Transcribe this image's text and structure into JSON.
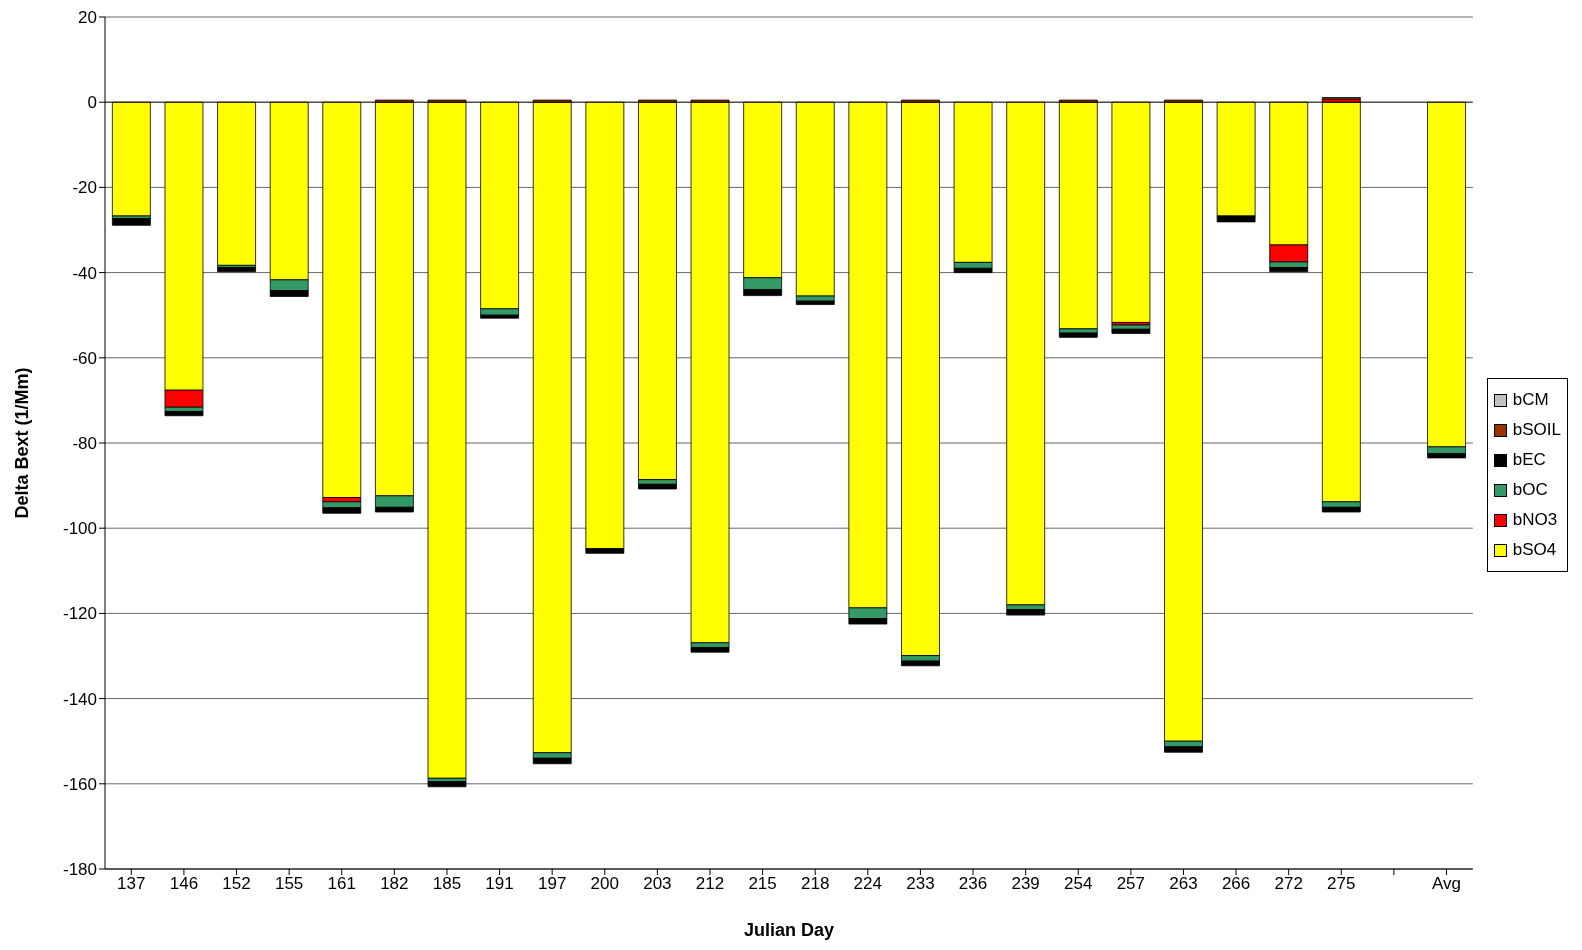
{
  "chart_data": {
    "type": "bar",
    "stacked": true,
    "xlabel": "Julian Day",
    "ylabel": "Delta Bext (1/Mm)",
    "categories": [
      "137",
      "146",
      "152",
      "155",
      "161",
      "182",
      "185",
      "191",
      "197",
      "200",
      "203",
      "212",
      "215",
      "218",
      "224",
      "233",
      "236",
      "239",
      "254",
      "257",
      "263",
      "266",
      "272",
      "275",
      null,
      "Avg"
    ],
    "series": [
      {
        "name": "bSO4",
        "color": "#ffff00",
        "values": [
          -26.7,
          -67.6,
          -38.3,
          -41.7,
          -92.8,
          -92.4,
          -158.7,
          -48.5,
          -152.7,
          -104.8,
          -88.6,
          -126.9,
          -41.2,
          -45.5,
          -118.7,
          -129.9,
          -37.6,
          -118.0,
          -53.2,
          -51.7,
          -150.0,
          -26.7,
          -33.5,
          -93.8,
          null,
          -80.9
        ]
      },
      {
        "name": "bNO3",
        "color": "#ff0000",
        "values": [
          0,
          -4.0,
          0,
          0,
          -1.0,
          0,
          0,
          0,
          0,
          0,
          0,
          0,
          0,
          0,
          0,
          0,
          0,
          0,
          0,
          -0.6,
          0,
          0,
          -4.0,
          0.7,
          null,
          0
        ]
      },
      {
        "name": "bOC",
        "color": "#339966",
        "values": [
          -0.6,
          -1.0,
          -0.5,
          -2.5,
          -1.4,
          -2.7,
          -0.8,
          -1.5,
          -1.3,
          0,
          -1.1,
          -1.1,
          -2.8,
          -1.2,
          -2.5,
          -1.3,
          -1.4,
          -1.1,
          -1.0,
          -1.0,
          -1.3,
          0,
          -1.3,
          -1.3,
          null,
          -1.6
        ]
      },
      {
        "name": "bEC",
        "color": "#000000",
        "values": [
          -1.6,
          -1.0,
          -1.0,
          -1.4,
          -1.3,
          -1.1,
          -1.2,
          -0.7,
          -1.3,
          -1.1,
          -1.1,
          -1.1,
          -1.4,
          -0.8,
          -1.3,
          -1.1,
          -1.0,
          -1.3,
          -1.0,
          -1.0,
          -1.3,
          -1.4,
          -1.0,
          -1.1,
          null,
          -1.0
        ]
      },
      {
        "name": "bSOIL",
        "color": "#993300",
        "values": [
          0,
          0,
          0,
          0,
          0,
          0.5,
          0.5,
          0,
          0.5,
          0,
          0.5,
          0.5,
          0,
          0,
          0,
          0.5,
          0,
          0,
          0.5,
          0,
          0.5,
          0,
          0,
          0.4,
          null,
          0
        ]
      },
      {
        "name": "bCM",
        "color": "#c0c0c0",
        "values": [
          0,
          0,
          0,
          0,
          0,
          0,
          0,
          0,
          0,
          0,
          0,
          0,
          0,
          0,
          0,
          0,
          0,
          0,
          0,
          0,
          0,
          0,
          0,
          0,
          null,
          0
        ]
      }
    ],
    "ylim": [
      -180,
      20
    ],
    "yticks": [
      20,
      0,
      -20,
      -40,
      -60,
      -80,
      -100,
      -120,
      -140,
      -160,
      -180
    ],
    "grid": "y",
    "legend": "right"
  }
}
